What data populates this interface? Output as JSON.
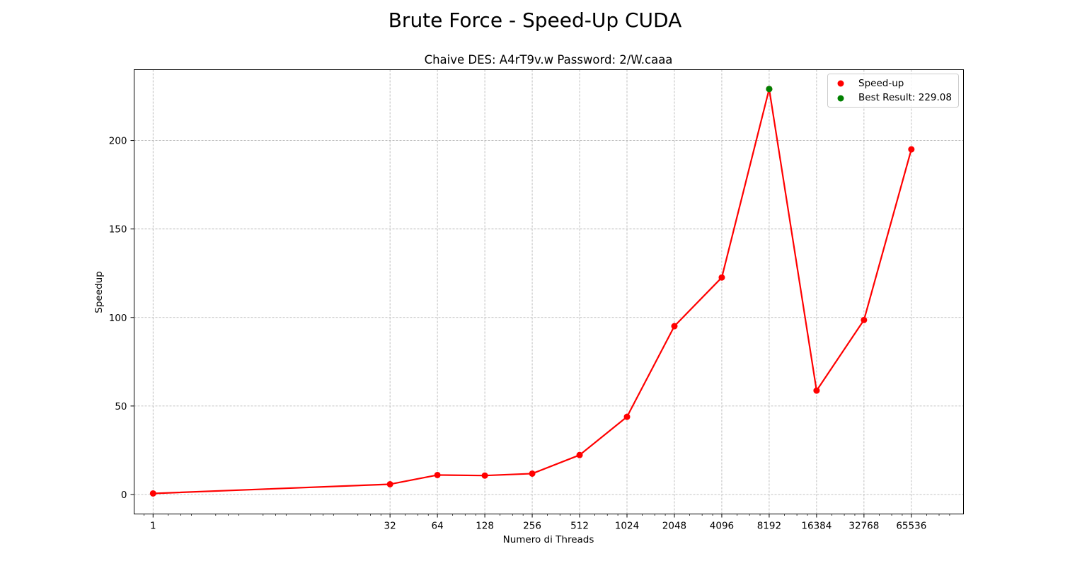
{
  "chart_data": {
    "type": "line",
    "title": "Brute Force - Speed-Up CUDA",
    "subtitle": "Chaive DES: A4rT9v.w Password: 2/W.caaa",
    "xlabel": "Numero di Threads",
    "ylabel": "Speedup",
    "xscale": "log2",
    "x_ticks": [
      "1",
      "32",
      "64",
      "128",
      "256",
      "512",
      "1024",
      "2048",
      "4096",
      "8192",
      "16384",
      "32768",
      "65536"
    ],
    "y_ticks": [
      "0",
      "50",
      "100",
      "150",
      "200"
    ],
    "ylim": [
      -11,
      240
    ],
    "grid": true,
    "legend_position": "top-right",
    "series": [
      {
        "name": "Speed-up",
        "color": "#ff0000",
        "x": [
          1,
          32,
          64,
          128,
          256,
          512,
          1024,
          2048,
          4096,
          8192,
          16384,
          32768,
          65536
        ],
        "y": [
          0.6,
          5.8,
          11.0,
          10.7,
          11.8,
          22.3,
          43.9,
          95.1,
          122.6,
          229.08,
          58.7,
          98.6,
          195.0
        ]
      }
    ],
    "best_point": {
      "name": "Best Result: 229.08",
      "color": "#008000",
      "x": 8192,
      "y": 229.08
    }
  }
}
